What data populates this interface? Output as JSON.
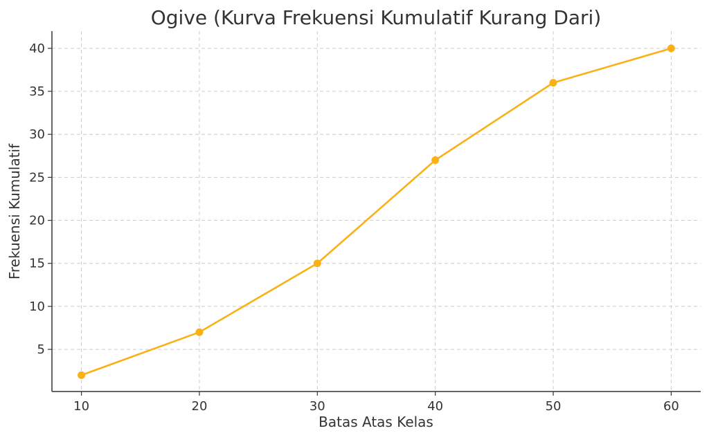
{
  "chart_data": {
    "type": "line",
    "title": "Ogive (Kurva Frekuensi Kumulatif Kurang Dari)",
    "xlabel": "Batas Atas Kelas",
    "ylabel": "Frekuensi Kumulatif",
    "x": [
      10,
      20,
      30,
      40,
      50,
      60
    ],
    "series": [
      {
        "values": [
          2,
          7,
          15,
          27,
          36,
          40
        ]
      }
    ],
    "xlim": [
      7.5,
      62.5
    ],
    "ylim": [
      0.1,
      42
    ],
    "xticks": [
      10,
      20,
      30,
      40,
      50,
      60
    ],
    "yticks": [
      5,
      10,
      15,
      20,
      25,
      30,
      35,
      40
    ],
    "grid": true,
    "markers": true,
    "line_color": "#F9B115"
  }
}
